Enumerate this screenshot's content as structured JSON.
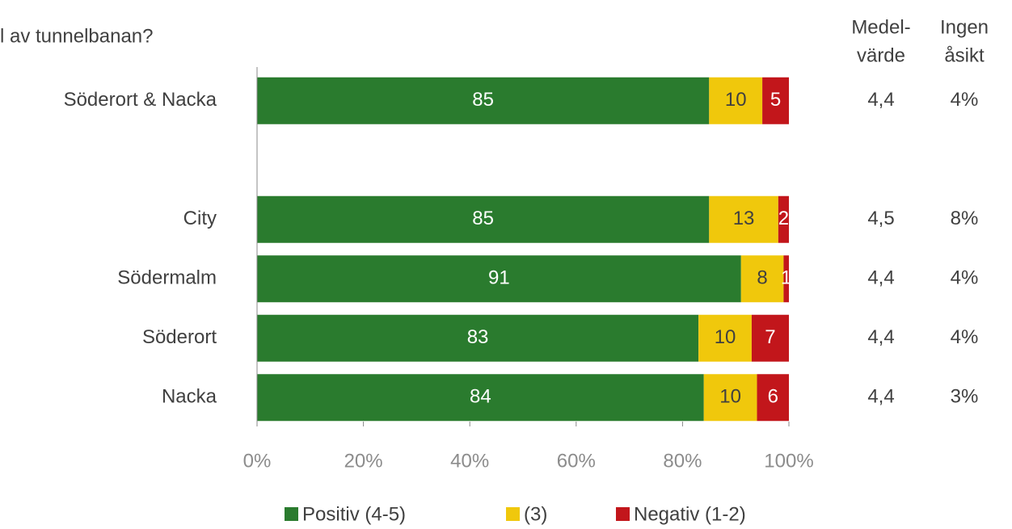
{
  "chart_data": {
    "type": "stacked-bar-horizontal",
    "title": "l av tunnelbanan?",
    "categories": [
      "Söderort & Nacka",
      null,
      "City",
      "Södermalm",
      "Söderort",
      "Nacka"
    ],
    "series": [
      {
        "name": "Positiv (4-5)",
        "color": "#2a7b2e",
        "label_color": "#ffffff",
        "values": [
          85,
          null,
          85,
          91,
          83,
          84
        ]
      },
      {
        "name": "(3)",
        "color": "#f0c80c",
        "label_color": "#404040",
        "values": [
          10,
          null,
          13,
          8,
          10,
          10
        ]
      },
      {
        "name": "Negativ (1-2)",
        "color": "#c2161b",
        "label_color": "#ffffff",
        "values": [
          5,
          null,
          2,
          1,
          7,
          6
        ]
      }
    ],
    "xlim": [
      0,
      100
    ],
    "xticks": [
      {
        "value": 0,
        "label": "0%"
      },
      {
        "value": 20,
        "label": "20%"
      },
      {
        "value": 40,
        "label": "40%"
      },
      {
        "value": 60,
        "label": "60%"
      },
      {
        "value": 80,
        "label": "80%"
      },
      {
        "value": 100,
        "label": "100%"
      }
    ],
    "side_columns": [
      {
        "header": [
          "Medel-",
          "värde"
        ],
        "values": [
          "4,4",
          null,
          "4,5",
          "4,4",
          "4,4",
          "4,4"
        ]
      },
      {
        "header": [
          "Ingen",
          "åsikt"
        ],
        "values": [
          "4%",
          null,
          "8%",
          "4%",
          "4%",
          "3%"
        ]
      }
    ],
    "legend": "bottom"
  }
}
